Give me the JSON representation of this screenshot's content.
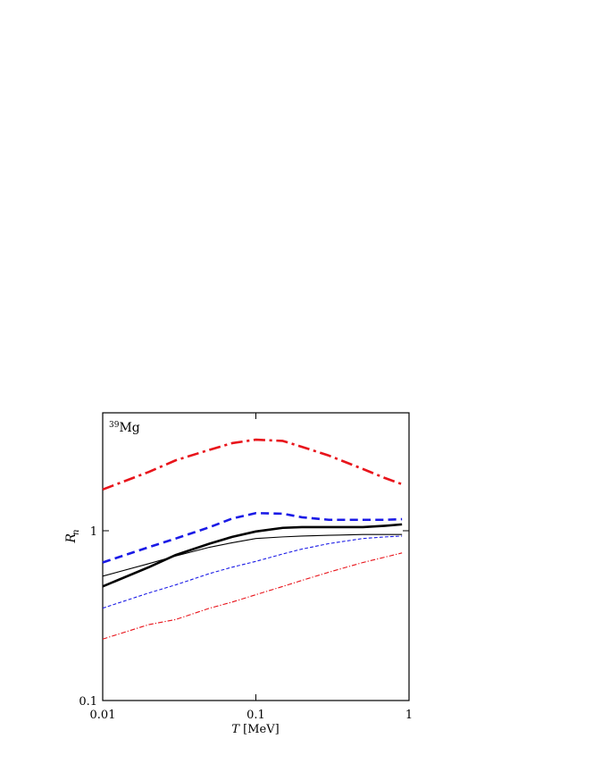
{
  "chart_data": {
    "type": "line",
    "log_x": true,
    "log_y": true,
    "annotation": {
      "sup": "39",
      "text": "Mg"
    },
    "xlabel": {
      "var": "T",
      "unit": "[MeV]"
    },
    "ylabel": {
      "text": "R",
      "sub": "n"
    },
    "x": [
      0.01,
      0.02,
      0.03,
      0.05,
      0.07,
      0.1,
      0.15,
      0.2,
      0.3,
      0.5,
      0.7,
      0.9
    ],
    "xlim": [
      0.01,
      1
    ],
    "xticks": [
      0.01,
      0.1,
      1
    ],
    "ylim": [
      0.1,
      4.95
    ],
    "yticks": [
      0.1,
      1
    ],
    "series": [
      {
        "color": "#e8141b",
        "dash": "dashdot",
        "width": 2.6,
        "values": [
          1.75,
          2.22,
          2.6,
          3.0,
          3.28,
          3.44,
          3.38,
          3.12,
          2.77,
          2.31,
          2.04,
          1.88
        ]
      },
      {
        "color": "#1a1ae6",
        "dash": "dash",
        "width": 2.6,
        "values": [
          0.65,
          0.8,
          0.9,
          1.05,
          1.18,
          1.27,
          1.26,
          1.2,
          1.16,
          1.16,
          1.16,
          1.17
        ]
      },
      {
        "color": "#000000",
        "dash": "solid",
        "width": 2.6,
        "values": [
          0.47,
          0.61,
          0.72,
          0.84,
          0.92,
          0.99,
          1.04,
          1.05,
          1.05,
          1.05,
          1.07,
          1.09
        ]
      },
      {
        "color": "#000000",
        "dash": "solid",
        "width": 1.1,
        "values": [
          0.54,
          0.64,
          0.71,
          0.8,
          0.85,
          0.9,
          0.92,
          0.93,
          0.94,
          0.95,
          0.95,
          0.95
        ]
      },
      {
        "color": "#1a1ae6",
        "dash": "dash",
        "width": 1.1,
        "values": [
          0.35,
          0.43,
          0.48,
          0.56,
          0.61,
          0.66,
          0.73,
          0.78,
          0.84,
          0.9,
          0.92,
          0.93
        ]
      },
      {
        "color": "#e8141b",
        "dash": "dashdot",
        "width": 1.1,
        "values": [
          0.23,
          0.28,
          0.3,
          0.35,
          0.38,
          0.42,
          0.47,
          0.51,
          0.57,
          0.65,
          0.7,
          0.74
        ]
      }
    ]
  }
}
